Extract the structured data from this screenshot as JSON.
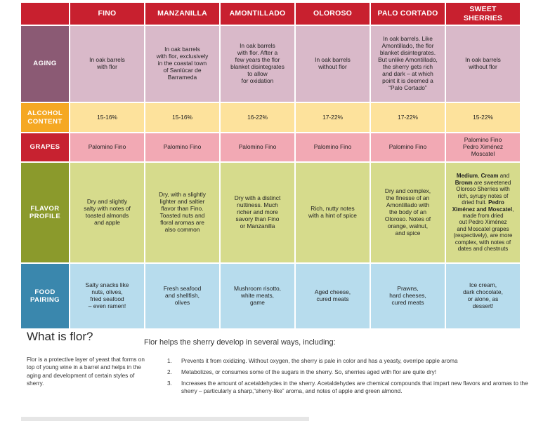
{
  "columns": [
    "FINO",
    "MANZANILLA",
    "AMONTILLADO",
    "OLOROSO",
    "PALO CORTADO",
    "SWEET SHERRIES"
  ],
  "rows": [
    {
      "key": "aging",
      "label": "AGING",
      "cells": [
        "In oak barrels\nwith flor",
        "In oak barrels\nwith flor, exclusively\nin the coastal town\nof Sanlúcar de\nBarrameda",
        "In oak barrels\nwith flor. After a\nfew years the flor\nblanket disintegrates\nto allow\nfor oxidation",
        "In oak barrels\nwithout flor",
        "In oak barrels. Like\nAmontillado, the flor\nblanket disintegrates.\nBut unlike Amontillado,\nthe sherry gets rich\nand dark – at which\npoint it is deemed a\n“Palo Cortado”",
        "In oak barrels\nwithout flor"
      ]
    },
    {
      "key": "alc",
      "label": "ALCOHOL\nCONTENT",
      "cells": [
        "15-16%",
        "15-16%",
        "16-22%",
        "17-22%",
        "17-22%",
        "15-22%"
      ]
    },
    {
      "key": "grapes",
      "label": "GRAPES",
      "cells": [
        "Palomino Fino",
        "Palomino Fino",
        "Palomino Fino",
        "Palomino Fino",
        "Palomino Fino",
        "Palomino Fino\nPedro Ximénez\nMoscatel"
      ]
    },
    {
      "key": "flavor",
      "label": "FLAVOR\nPROFILE",
      "cells": [
        "Dry and slightly\nsalty with notes of\ntoasted almonds\nand apple",
        "Dry, with a slightly\nlighter and saltier\nflavor than Fino.\nToasted nuts and\nfloral aromas are\nalso common",
        "Dry with a distinct\nnuttiness. Much\nricher and more\nsavory than Fino\nor Manzanilla",
        "Rich, nutty notes\nwith a hint of spice",
        "Dry and complex,\nthe finesse of an\nAmontillado with\nthe body of an\nOloroso. Notes of\norange, walnut,\nand spice"
      ],
      "sweet": {
        "b1": "Medium",
        "t1": ", ",
        "b2": "Cream",
        "t2": " and\n",
        "b3": "Brown",
        "t3": " are sweetened\nOloroso Sherries with\nrich, syrupy notes of\ndried fruit. ",
        "b4": "Pedro\nXiménez and Moscatel",
        "t4": ",\nmade from dried\nout Pedro Ximénez\nand Moscatel grapes\n(respectively), are more\ncomplex, with notes of\ndates and chestnuts"
      }
    },
    {
      "key": "food",
      "label": "FOOD\nPAIRING",
      "cells": [
        "Salty snacks like\nnuts, olives,\nfried seafood\n– even ramen!",
        "Fresh seafood\nand shellfish,\nolives",
        "Mushroom risotto,\nwhite meats,\ngame",
        "Aged cheese,\ncured meats",
        "Prawns,\nhard cheeses,\ncured meats",
        "Ice cream,\ndark chocolate,\nor alone, as\ndessert!"
      ]
    }
  ],
  "flor": {
    "title": "What is flor?",
    "definition": "Flor is a protective layer of yeast that forms on top of young wine in a barrel and helps in the aging and development of certain styles of sherry.",
    "helps": "Flor helps the sherry develop in several ways, including:",
    "items": [
      {
        "num": "1.",
        "text": "Prevents it from oxidizing. Without oxygen, the sherry is pale in color and has a yeasty, overripe apple aroma"
      },
      {
        "num": "2.",
        "text": "Metabolizes, or consumes some of the sugars in the sherry. So, sherries aged with flor are quite dry!"
      },
      {
        "num": "3.",
        "text": "Increases the amount of acetaldehydes in the sherry. Acetaldehydes are chemical compounds that impart new flavors and aromas to the sherry – particularly a sharp,“sherry-like” aroma, and notes of apple and green almond."
      }
    ]
  }
}
